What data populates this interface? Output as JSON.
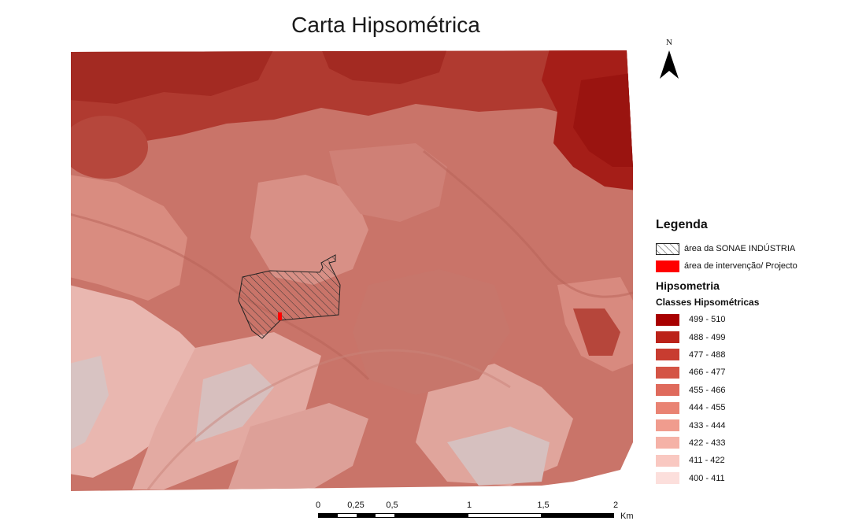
{
  "title": "Carta Hipsométrica",
  "north": {
    "label": "N",
    "icon": "north-arrow-icon"
  },
  "legend": {
    "heading": "Legenda",
    "sonae": {
      "label": "área da SONAE INDÚSTRIA",
      "pattern": "hatch"
    },
    "intervention": {
      "label": "área de intervenção/ Projecto",
      "color": "#ff0000"
    },
    "hypsometry_heading": "Hipsometria",
    "classes_heading": "Classes Hipsométricas",
    "classes": [
      {
        "label": "499 - 510",
        "color": "#a80000"
      },
      {
        "label": "488 - 499",
        "color": "#bb2219"
      },
      {
        "label": "477 - 488",
        "color": "#c83c30"
      },
      {
        "label": "466 - 477",
        "color": "#d45445"
      },
      {
        "label": "455 - 466",
        "color": "#df6a5c"
      },
      {
        "label": "444 - 455",
        "color": "#e98373"
      },
      {
        "label": "433 - 444",
        "color": "#f09c8e"
      },
      {
        "label": "422 - 433",
        "color": "#f5b2a7"
      },
      {
        "label": "411 - 422",
        "color": "#f9c8c1"
      },
      {
        "label": "400 - 411",
        "color": "#fcdfdc"
      }
    ]
  },
  "scale": {
    "ticks": [
      "0",
      "0,25",
      "0,5",
      "1",
      "1,5",
      "2"
    ],
    "unit": "Km"
  }
}
